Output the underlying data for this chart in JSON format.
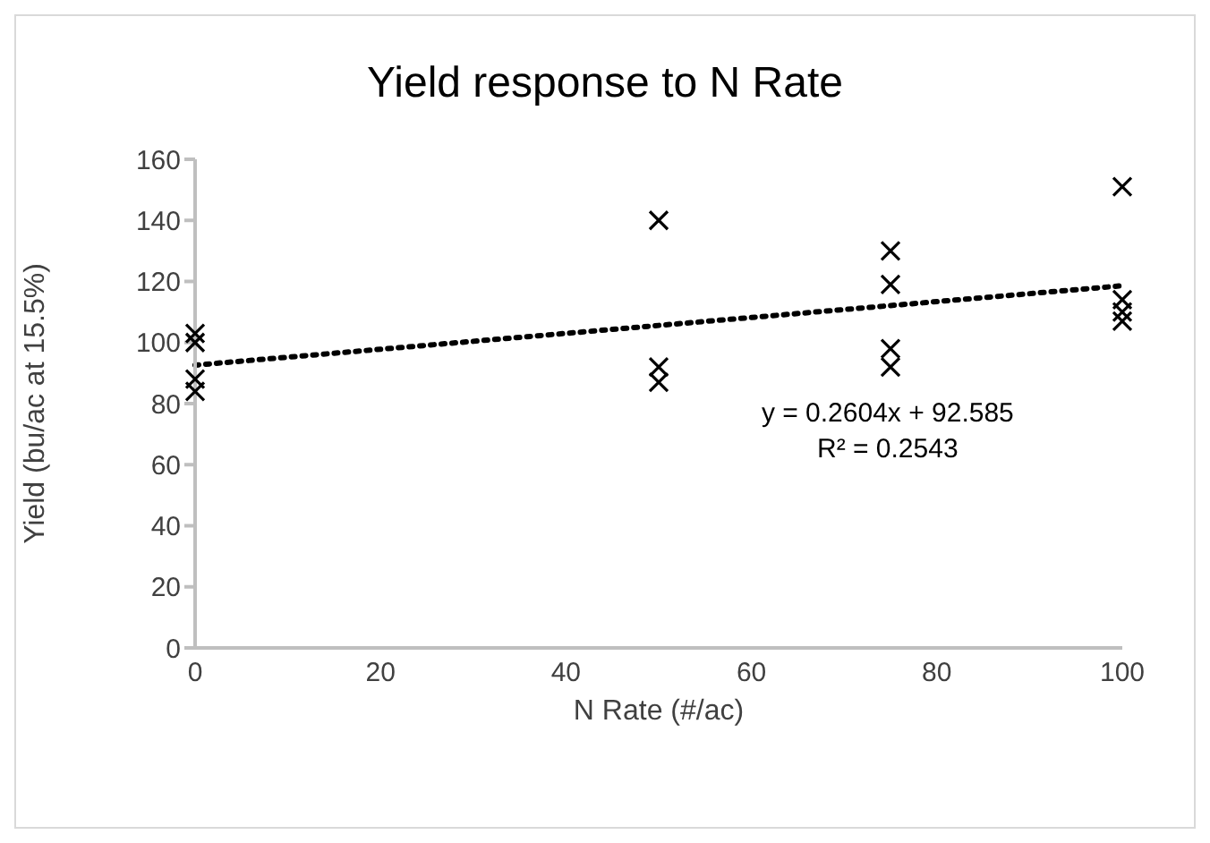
{
  "chart_data": {
    "type": "scatter",
    "title": "Yield response to N Rate",
    "xlabel": "N Rate (#/ac)",
    "ylabel": "Yield (bu/ac at 15.5%)",
    "xlim": [
      0,
      100
    ],
    "xticks": [
      0,
      20,
      40,
      60,
      80,
      100
    ],
    "ylim": [
      0,
      160
    ],
    "yticks": [
      0,
      20,
      40,
      60,
      80,
      100,
      120,
      140,
      160
    ],
    "grid": false,
    "legend": false,
    "annotations": [
      "y = 0.2604x + 92.585",
      "R² = 0.2543"
    ],
    "series": [
      {
        "color": "#000000",
        "marker": "cross",
        "x": [
          0,
          0,
          0,
          0,
          50,
          50,
          50,
          75,
          75,
          75,
          75,
          100,
          100,
          100,
          100
        ],
        "values": [
          103,
          100,
          88,
          84,
          140,
          92,
          87,
          130,
          119,
          98,
          92,
          151,
          114,
          110,
          107
        ]
      },
      {
        "type": "line",
        "color": "#000000",
        "marker": "none",
        "line_style": "dotted",
        "x": [
          0,
          100
        ],
        "values": [
          92.6,
          118.6
        ]
      }
    ]
  }
}
